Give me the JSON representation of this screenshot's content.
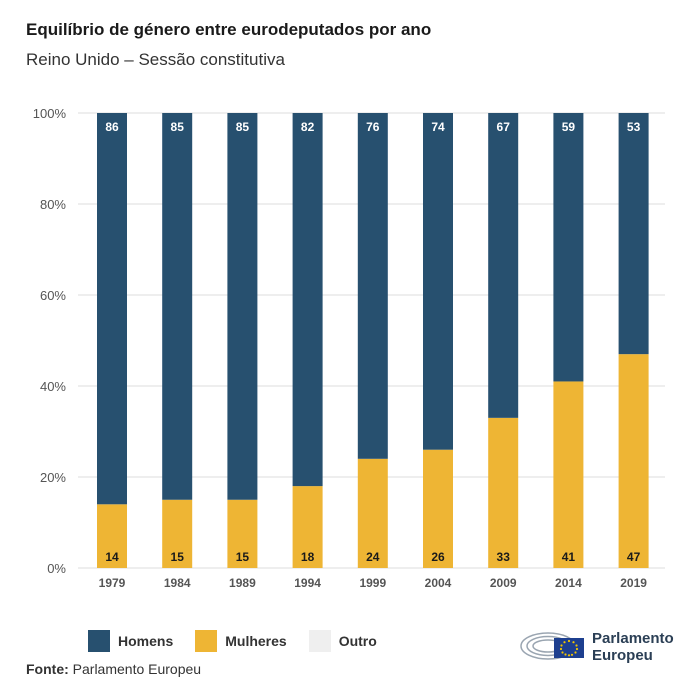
{
  "header": {
    "title": "Equilíbrio de género entre eurodeputados por ano",
    "subtitle": "Reino Unido – Sessão constitutiva"
  },
  "colors": {
    "homens": "#27506f",
    "mulheres": "#eeb534",
    "outro": "#efefef",
    "grid": "#dddddd",
    "axis_text": "#555555"
  },
  "chart_data": {
    "type": "bar",
    "stacked": true,
    "categories": [
      "1979",
      "1984",
      "1989",
      "1994",
      "1999",
      "2004",
      "2009",
      "2014",
      "2019"
    ],
    "series": [
      {
        "name": "Mulheres",
        "values": [
          14,
          15,
          15,
          18,
          24,
          26,
          33,
          41,
          47
        ]
      },
      {
        "name": "Homens",
        "values": [
          86,
          85,
          85,
          82,
          76,
          74,
          67,
          59,
          53
        ]
      },
      {
        "name": "Outro",
        "values": [
          0,
          0,
          0,
          0,
          0,
          0,
          0,
          0,
          0
        ]
      }
    ],
    "ylim": [
      0,
      100
    ],
    "yticks": [
      "0%",
      "20%",
      "40%",
      "60%",
      "80%",
      "100%"
    ],
    "grid": true,
    "legend_position": "bottom-left"
  },
  "legend": [
    {
      "label": "Homens",
      "color": "#27506f"
    },
    {
      "label": "Mulheres",
      "color": "#eeb534"
    },
    {
      "label": "Outro",
      "color": "#efefef"
    }
  ],
  "footer": {
    "source_label": "Fonte:",
    "source_text": " Parlamento Europeu",
    "logo_line1": "Parlamento",
    "logo_line2": "Europeu"
  }
}
